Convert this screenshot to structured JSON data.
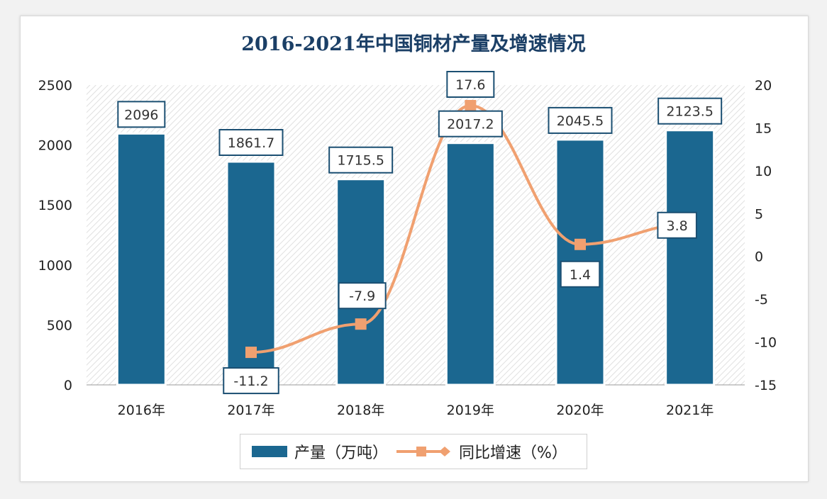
{
  "chart_data": {
    "type": "bar+line",
    "title": "2016-2021年中国铜材产量及增速情况",
    "categories": [
      "2016年",
      "2017年",
      "2018年",
      "2019年",
      "2020年",
      "2021年"
    ],
    "series": [
      {
        "name": "产量（万吨）",
        "type": "bar",
        "axis": "left",
        "values": [
          2096,
          1861.7,
          1715.5,
          2017.2,
          2045.5,
          2123.5
        ],
        "labels": [
          "2096",
          "1861.7",
          "1715.5",
          "2017.2",
          "2045.5",
          "2123.5"
        ]
      },
      {
        "name": "同比增速（%）",
        "type": "line",
        "axis": "right",
        "values": [
          null,
          -11.2,
          -7.9,
          17.6,
          1.4,
          3.8
        ],
        "labels": [
          "",
          "-11.2",
          "-7.9",
          "17.6",
          "1.4",
          "3.8"
        ]
      }
    ],
    "y_left": {
      "range": [
        0,
        2500
      ],
      "ticks": [
        "0",
        "500",
        "1000",
        "1500",
        "2000",
        "2500"
      ]
    },
    "y_right": {
      "range": [
        -15,
        20
      ],
      "ticks": [
        "-15",
        "-10",
        "-5",
        "0",
        "5",
        "10",
        "15",
        "20"
      ]
    },
    "legend": "bottom",
    "colors": {
      "bar": "#1b6790",
      "line": "#f0a070",
      "title": "#1b3f66"
    }
  }
}
